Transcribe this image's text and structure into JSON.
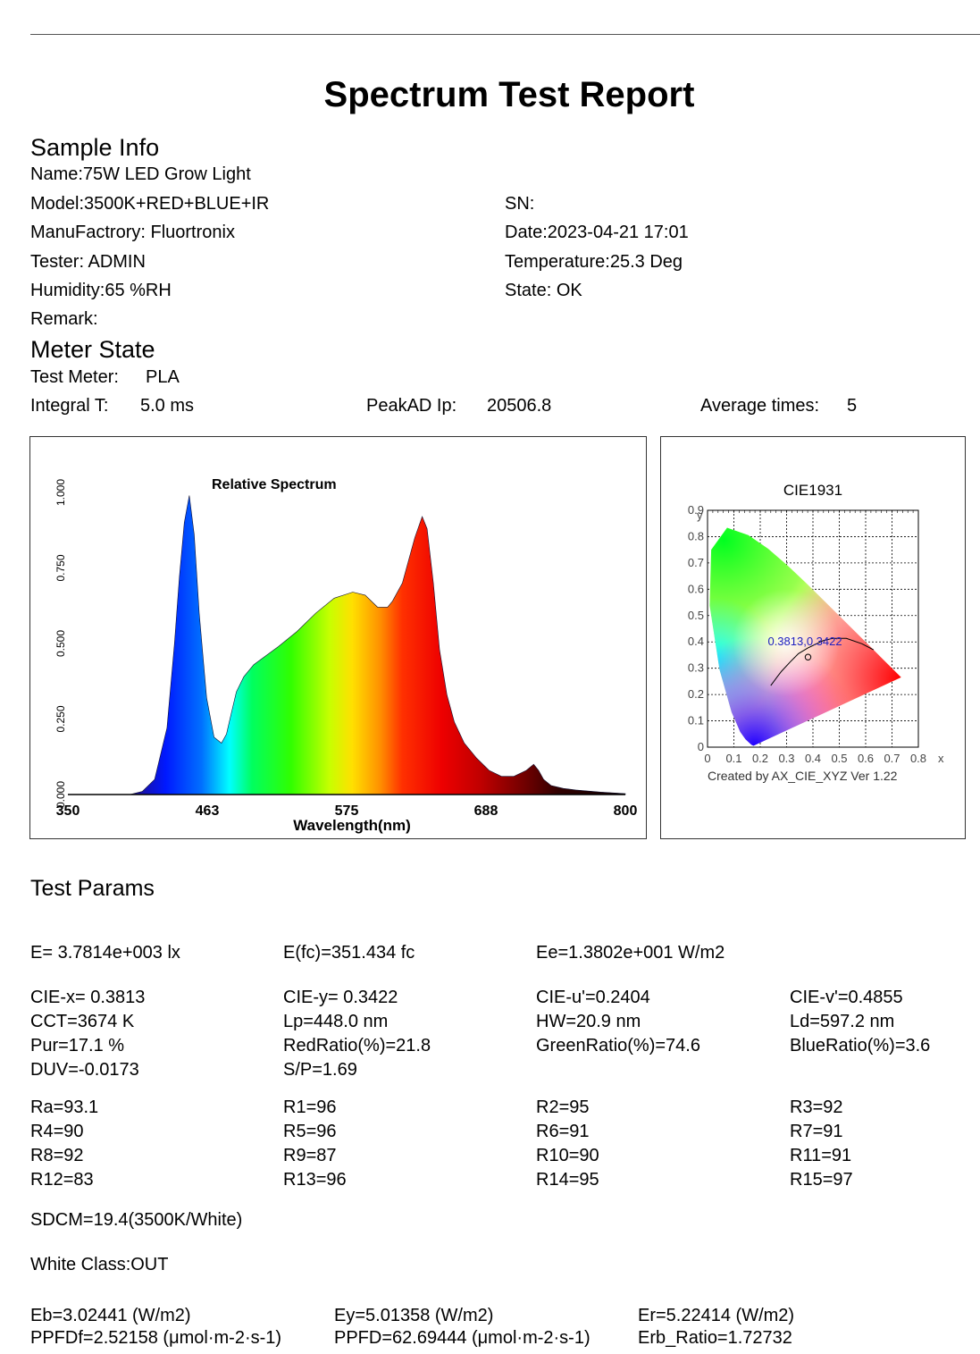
{
  "report": {
    "title": "Spectrum Test Report"
  },
  "sample_info": {
    "heading": "Sample Info",
    "name": "Name:75W LED Grow Light",
    "model": "Model:3500K+RED+BLUE+IR",
    "sn": "SN:",
    "manufactory": "ManuFactrory: Fluortronix",
    "date": "Date:2023-04-21 17:01",
    "tester": "Tester: ADMIN",
    "temperature": "Temperature:25.3 Deg",
    "humidity": "Humidity:65 %RH",
    "state": "State: OK",
    "remark": "Remark:"
  },
  "meter_state": {
    "heading": "Meter State",
    "test_meter_label": "Test Meter:",
    "test_meter_value": "PLA",
    "integral_label": "Integral T:",
    "integral_value": "5.0 ms",
    "peakad_label": "PeakAD Ip:",
    "peakad_value": "20506.8",
    "avg_label": "Average times:",
    "avg_value": "5"
  },
  "chart_data": [
    {
      "type": "area",
      "title": "Relative Spectrum",
      "xlabel": "Wavelength(nm)",
      "ylabel": "",
      "xlim": [
        350,
        800
      ],
      "ylim": [
        0,
        1
      ],
      "x_ticks": [
        "350",
        "463",
        "575",
        "688",
        "800"
      ],
      "y_ticks": [
        "0.000",
        "0.250",
        "0.500",
        "0.750",
        "1.000"
      ],
      "grid": false,
      "x": [
        350,
        370,
        390,
        400,
        410,
        420,
        430,
        436,
        440,
        444,
        448,
        452,
        456,
        462,
        468,
        474,
        478,
        482,
        486,
        492,
        500,
        510,
        520,
        535,
        550,
        565,
        580,
        590,
        600,
        608,
        612,
        620,
        630,
        636,
        640,
        645,
        650,
        656,
        662,
        670,
        680,
        690,
        700,
        710,
        720,
        726,
        730,
        734,
        740,
        750,
        760,
        780,
        800
      ],
      "y": [
        0.0,
        0.0,
        0.0,
        0.0,
        0.01,
        0.05,
        0.22,
        0.5,
        0.72,
        0.9,
        0.99,
        0.86,
        0.6,
        0.32,
        0.19,
        0.17,
        0.2,
        0.27,
        0.34,
        0.39,
        0.43,
        0.46,
        0.49,
        0.54,
        0.6,
        0.65,
        0.67,
        0.66,
        0.62,
        0.62,
        0.64,
        0.7,
        0.85,
        0.92,
        0.88,
        0.7,
        0.48,
        0.33,
        0.24,
        0.17,
        0.12,
        0.08,
        0.06,
        0.06,
        0.08,
        0.1,
        0.08,
        0.05,
        0.03,
        0.02,
        0.015,
        0.008,
        0.003
      ]
    },
    {
      "type": "scatter",
      "title": "CIE1931",
      "xlabel": "x",
      "ylabel": "y",
      "xlim": [
        0,
        0.8
      ],
      "ylim": [
        0,
        0.9
      ],
      "x_ticks": [
        "0",
        "0.1",
        "0.2",
        "0.3",
        "0.4",
        "0.5",
        "0.6",
        "0.7",
        "0.8"
      ],
      "y_ticks": [
        "0",
        "0.1",
        "0.2",
        "0.3",
        "0.4",
        "0.5",
        "0.6",
        "0.7",
        "0.8",
        "0.9"
      ],
      "grid": true,
      "point": {
        "x": 0.3813,
        "y": 0.3422,
        "label": "0.3813,0.3422"
      },
      "locus": [
        [
          0.1741,
          0.005
        ],
        [
          0.1666,
          0.0089
        ],
        [
          0.144,
          0.0297
        ],
        [
          0.1241,
          0.0578
        ],
        [
          0.0913,
          0.1327
        ],
        [
          0.0454,
          0.295
        ],
        [
          0.0082,
          0.5384
        ],
        [
          0.0139,
          0.7502
        ],
        [
          0.0743,
          0.8338
        ],
        [
          0.1547,
          0.8059
        ],
        [
          0.2296,
          0.7543
        ],
        [
          0.3016,
          0.6923
        ],
        [
          0.3731,
          0.6245
        ],
        [
          0.4441,
          0.5547
        ],
        [
          0.5125,
          0.4866
        ],
        [
          0.5752,
          0.4242
        ],
        [
          0.627,
          0.3725
        ],
        [
          0.6658,
          0.334
        ],
        [
          0.6915,
          0.3083
        ],
        [
          0.7347,
          0.2653
        ]
      ],
      "planckian": [
        [
          0.24,
          0.234
        ],
        [
          0.2647,
          0.2675
        ],
        [
          0.2806,
          0.2883
        ],
        [
          0.3137,
          0.3236
        ],
        [
          0.3447,
          0.3553
        ],
        [
          0.3805,
          0.3768
        ],
        [
          0.4369,
          0.4041
        ],
        [
          0.4763,
          0.4137
        ],
        [
          0.5267,
          0.4133
        ],
        [
          0.5857,
          0.3931
        ],
        [
          0.63,
          0.37
        ]
      ],
      "footer": "Created by AX_CIE_XYZ Ver 1.22"
    }
  ],
  "test_params": {
    "heading": "Test Params",
    "row1": [
      "E=  3.7814e+003 lx",
      "E(fc)=351.434 fc",
      "Ee=1.3802e+001 W/m2"
    ],
    "grid": [
      [
        "CIE-x= 0.3813",
        "CIE-y= 0.3422",
        "CIE-u'=0.2404",
        "CIE-v'=0.4855"
      ],
      [
        "CCT=3674 K",
        "Lp=448.0 nm",
        "HW=20.9 nm",
        "Ld=597.2 nm"
      ],
      [
        "Pur=17.1 %",
        "RedRatio(%)=21.8",
        "GreenRatio(%)=74.6",
        "BlueRatio(%)=3.6"
      ],
      [
        "DUV=-0.0173",
        "S/P=1.69",
        "",
        ""
      ]
    ],
    "ra_grid": [
      [
        "Ra=93.1",
        "R1=96",
        "R2=95",
        "R3=92"
      ],
      [
        "R4=90",
        "R5=96",
        "R6=91",
        "R7=91"
      ],
      [
        "R8=92",
        "R9=87",
        "R10=90",
        "R11=91"
      ],
      [
        "R12=83",
        "R13=96",
        "R14=95",
        "R15=97"
      ]
    ],
    "sdcm": "SDCM=19.4(3500K/White)",
    "white_class": "White Class:OUT",
    "bottom": [
      [
        "Eb=3.02441 (W/m2)",
        "Ey=5.01358 (W/m2)",
        "Er=5.22414 (W/m2)"
      ],
      [
        "PPFDf=2.52158 (μmol·m-2·s-1)",
        "PPFD=62.69444 (μmol·m-2·s-1)",
        "Erb_Ratio=1.72732"
      ]
    ]
  }
}
